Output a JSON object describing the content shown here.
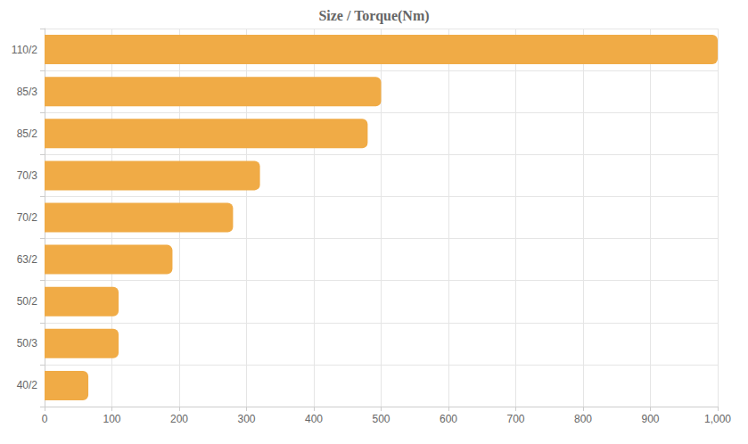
{
  "chart_data": {
    "type": "bar",
    "title": "Size / Torque(Nm)",
    "orientation": "horizontal",
    "categories": [
      "110/2",
      "85/3",
      "85/2",
      "70/3",
      "70/2",
      "63/2",
      "50/2",
      "50/3",
      "40/2"
    ],
    "values": [
      1000,
      500,
      480,
      320,
      280,
      190,
      110,
      110,
      65
    ],
    "color": "#f0ab46",
    "xlim": [
      0,
      1000
    ],
    "xticks": [
      0,
      100,
      200,
      300,
      400,
      500,
      600,
      700,
      800,
      900,
      {
        "value": 1000,
        "label": "1,000"
      }
    ],
    "grid": true
  }
}
